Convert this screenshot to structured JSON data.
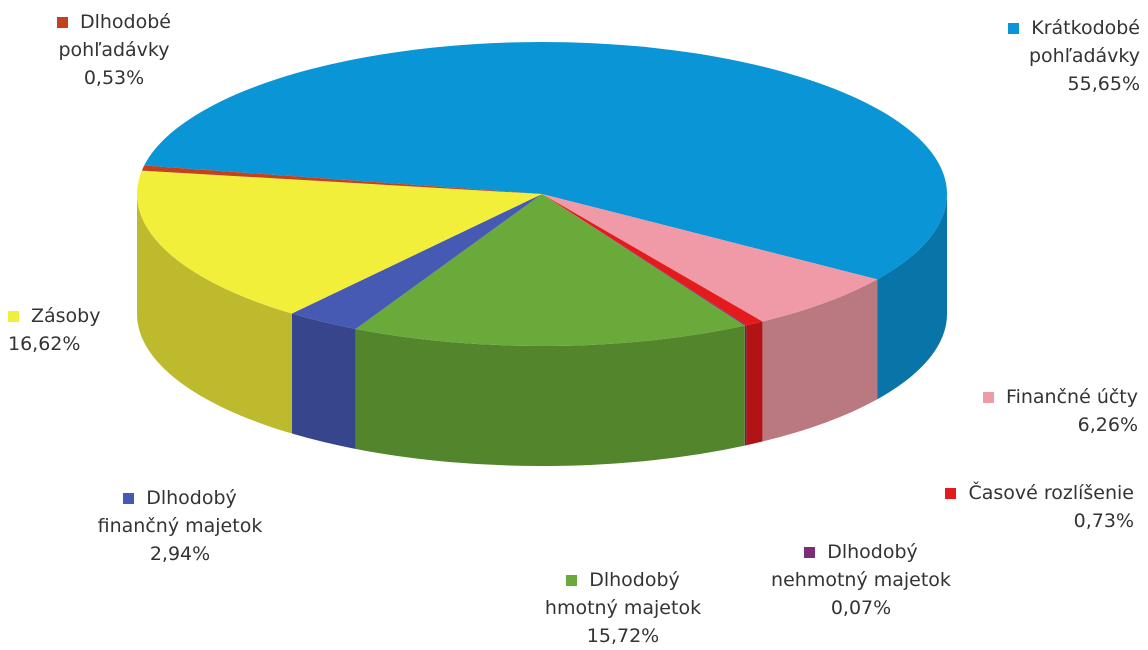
{
  "chart_data": {
    "type": "pie",
    "title": "",
    "series": [
      {
        "name": "Krátkodobé pohľadávky",
        "value": 55.65,
        "label": "55,65%",
        "color": "#0a95d6"
      },
      {
        "name": "Finančné účty",
        "value": 6.26,
        "label": "6,26%",
        "color": "#ef9aa6"
      },
      {
        "name": "Časové rozlíšenie",
        "value": 0.73,
        "label": "0,73%",
        "color": "#e41a1c"
      },
      {
        "name": "Dlhodobý nehmotný majetok",
        "value": 0.07,
        "label": "0,07%",
        "color": "#7b2d7a"
      },
      {
        "name": "Dlhodobý hmotný majetok",
        "value": 15.72,
        "label": "15,72%",
        "color": "#6aaa3a"
      },
      {
        "name": "Dlhodobý finančný majetok",
        "value": 2.94,
        "label": "2,94%",
        "color": "#4659b3"
      },
      {
        "name": "Zásoby",
        "value": 16.62,
        "label": "16,62%",
        "color": "#f2ef3a"
      },
      {
        "name": "Dlhodobé pohľadávky",
        "value": 0.53,
        "label": "0,53%",
        "color": "#c3411f"
      }
    ],
    "labels": [
      {
        "lines": [
          "Dlhodobé",
          "pohľadávky",
          "0,53%"
        ],
        "color": "#c3411f"
      },
      {
        "lines": [
          "Krátkodobé",
          "pohľadávky",
          "55,65%"
        ],
        "color": "#0a95d6"
      },
      {
        "lines": [
          "Zásoby",
          "16,62%"
        ],
        "color": "#f2ef3a"
      },
      {
        "lines": [
          "Finančné účty",
          "6,26%"
        ],
        "color": "#ef9aa6"
      },
      {
        "lines": [
          "Časové rozlíšenie",
          "0,73%"
        ],
        "color": "#e41a1c"
      },
      {
        "lines": [
          "Dlhodobý",
          "finančný majetok",
          "2,94%"
        ],
        "color": "#4659b3"
      },
      {
        "lines": [
          "Dlhodobý",
          "nehmotný majetok",
          "0,07%"
        ],
        "color": "#7b2d7a"
      },
      {
        "lines": [
          "Dlhodobý",
          "hmotný majetok",
          "15,72%"
        ],
        "color": "#6aaa3a"
      }
    ]
  }
}
